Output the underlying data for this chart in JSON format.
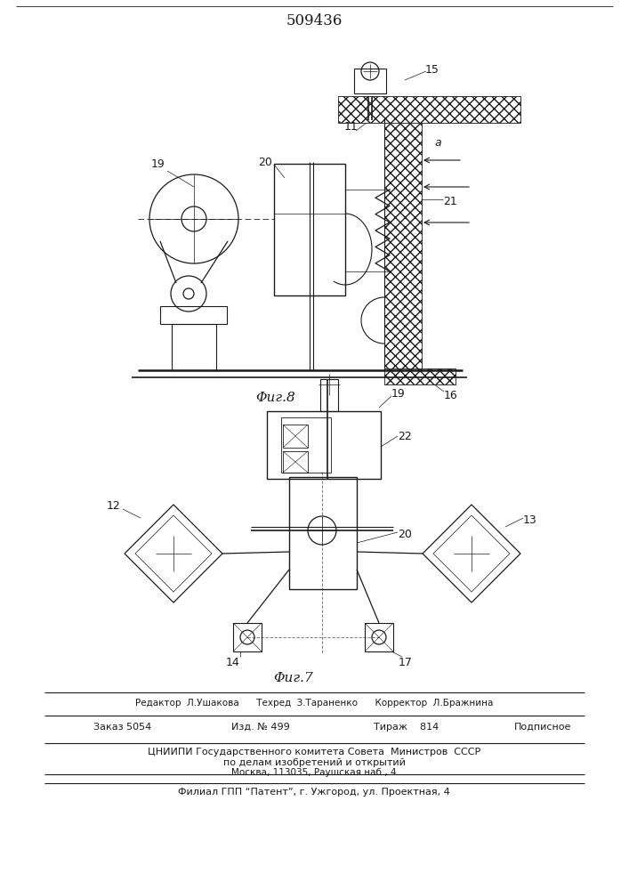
{
  "title_number": "509436",
  "fig8_caption": "Φиг.8",
  "fig7_caption": "Φиг.7",
  "editor_line": "Редактор  Л.Ушакова      Техред  З.Тараненко      Корректор  Л.Бражнина",
  "order_line_a": "Заказ 5054",
  "order_line_b": "Изд. № 499",
  "order_line_c": "Тираж    814",
  "order_line_d": "Подписное",
  "institute1": "ЦНИИПИ Государственного комитета Совета  Министров  СССР",
  "institute2": "по делам изобретений и открытий",
  "institute3": "Москва, 113035, Раушская наб., 4",
  "filial": "Филиал ГПП “Патент”, г. Ужгород, ул. Проектная, 4",
  "bg_color": "#ffffff",
  "lc": "#1a1a1a"
}
